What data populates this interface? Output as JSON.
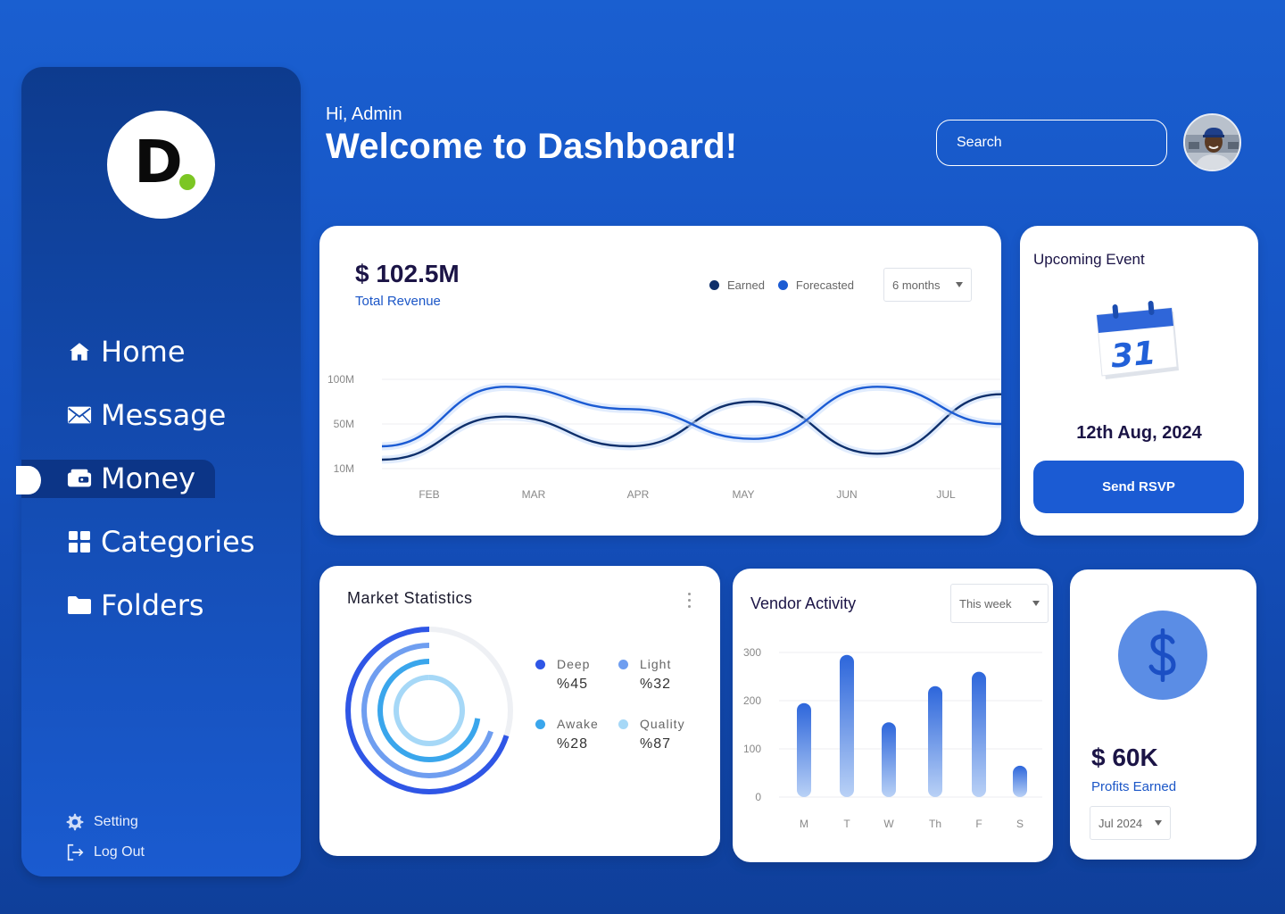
{
  "sidebar": {
    "logo_letter": "D",
    "nav": [
      {
        "label": "Home",
        "icon": "home-icon"
      },
      {
        "label": "Message",
        "icon": "mail-icon"
      },
      {
        "label": "Money",
        "icon": "wallet-icon",
        "active": true
      },
      {
        "label": "Categories",
        "icon": "grid-icon"
      },
      {
        "label": "Folders",
        "icon": "folder-icon"
      }
    ],
    "setting_label": "Setting",
    "logout_label": "Log Out"
  },
  "header": {
    "greeting": "Hi, Admin",
    "title": "Welcome to Dashboard!",
    "search_placeholder": "Search"
  },
  "revenue": {
    "amount": "$ 102.5M",
    "label": "Total Revenue",
    "legend_earned": "Earned",
    "legend_forecasted": "Forecasted",
    "period": "6 months",
    "colors": {
      "earned": "#0e2f6b",
      "forecasted": "#1b5bd3"
    }
  },
  "event": {
    "title": "Upcoming Event",
    "calendar_day": "31",
    "date": "12th Aug, 2024",
    "button": "Send RSVP"
  },
  "market": {
    "title": "Market Statistics",
    "stats": [
      {
        "name": "Deep",
        "value": "%45",
        "color": "#2f56e6"
      },
      {
        "name": "Light",
        "value": "%32",
        "color": "#6f9ef0"
      },
      {
        "name": "Awake",
        "value": "%28",
        "color": "#3aa6ec"
      },
      {
        "name": "Quality",
        "value": "%87",
        "color": "#a6d8f7"
      }
    ]
  },
  "vendor": {
    "title": "Vendor Activity",
    "period": "This week"
  },
  "profit": {
    "amount": "$ 60K",
    "label": "Profits Earned",
    "period": "Jul 2024"
  },
  "chart_data": [
    {
      "type": "line",
      "x": [
        "FEB",
        "MAR",
        "APR",
        "MAY",
        "JUN",
        "JUL"
      ],
      "y_ticks": [
        "100M",
        "50M",
        "10M"
      ],
      "series": [
        {
          "name": "Earned",
          "values": [
            12,
            70,
            30,
            90,
            20,
            100
          ]
        },
        {
          "name": "Forecasted",
          "values": [
            30,
            110,
            80,
            40,
            110,
            60
          ]
        }
      ]
    },
    {
      "type": "bar",
      "categories": [
        "M",
        "T",
        "W",
        "Th",
        "F",
        "S"
      ],
      "values": [
        195,
        295,
        155,
        230,
        260,
        65
      ],
      "y_ticks": [
        "300",
        "200",
        "100",
        "0"
      ],
      "ylim": [
        0,
        300
      ]
    }
  ]
}
